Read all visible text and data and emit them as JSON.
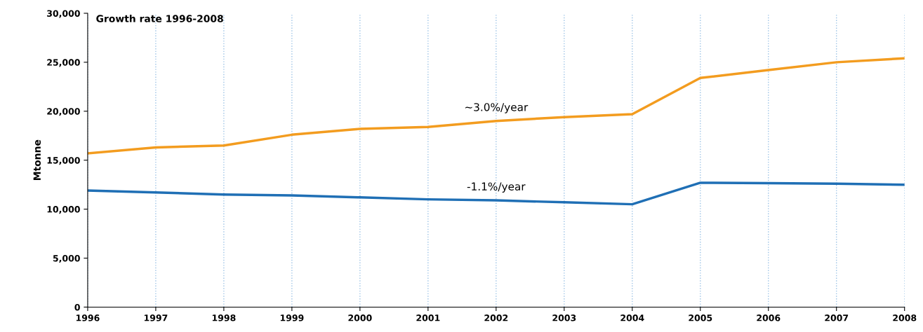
{
  "chart_data": {
    "type": "line",
    "title": "Growth rate 1996-2008",
    "ylabel": "Mtonne",
    "x": [
      1996,
      1997,
      1998,
      1999,
      2000,
      2001,
      2002,
      2003,
      2004,
      2005,
      2006,
      2007,
      2008
    ],
    "series": [
      {
        "color": "#f39c1f",
        "values": [
          15700,
          16300,
          16500,
          17600,
          18200,
          18400,
          19000,
          19400,
          19700,
          23400,
          24200,
          25000,
          25400
        ]
      },
      {
        "color": "#1f6fb5",
        "values": [
          11900,
          11700,
          11500,
          11400,
          11200,
          11000,
          10900,
          10700,
          10500,
          12700,
          12650,
          12600,
          12500
        ]
      }
    ],
    "xlim": [
      1996,
      2008
    ],
    "xticks": [
      1996,
      1997,
      1998,
      1999,
      2000,
      2001,
      2002,
      2003,
      2004,
      2005,
      2006,
      2007,
      2008
    ],
    "ylim": [
      0,
      30000
    ],
    "yticks": [
      {
        "value": 0,
        "label": "0"
      },
      {
        "value": 5000,
        "label": "5,000"
      },
      {
        "value": 10000,
        "label": "10,000"
      },
      {
        "value": 15000,
        "label": "15,000"
      },
      {
        "value": 20000,
        "label": "20,000"
      },
      {
        "value": 25000,
        "label": "25,000"
      },
      {
        "value": 30000,
        "label": "30,000"
      }
    ],
    "grid": "x",
    "marker": "none",
    "line_style": "solid",
    "annotations": [
      "~3.0%/year",
      "-1.1%/year"
    ]
  }
}
